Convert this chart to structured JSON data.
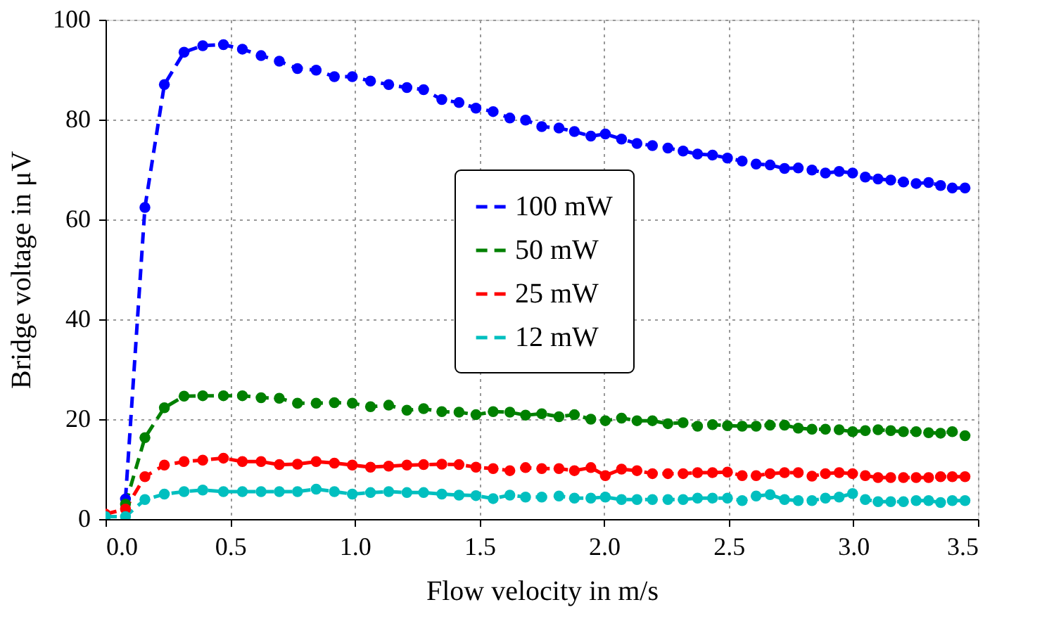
{
  "chart_data": {
    "type": "line",
    "xlabel": "Flow velocity in m/s",
    "ylabel": "Bridge voltage in μV",
    "x": [
      0.0,
      0.08,
      0.158,
      0.236,
      0.315,
      0.39,
      0.473,
      0.549,
      0.624,
      0.697,
      0.77,
      0.845,
      0.918,
      0.99,
      1.063,
      1.136,
      1.209,
      1.276,
      1.349,
      1.418,
      1.486,
      1.555,
      1.622,
      1.685,
      1.75,
      1.819,
      1.881,
      1.947,
      2.005,
      2.07,
      2.132,
      2.194,
      2.256,
      2.317,
      2.375,
      2.435,
      2.495,
      2.554,
      2.61,
      2.666,
      2.724,
      2.779,
      2.834,
      2.888,
      2.943,
      2.997,
      3.048,
      3.099,
      3.15,
      3.201,
      3.252,
      3.302,
      3.35,
      3.397,
      3.448
    ],
    "series": [
      {
        "name": "100 mW",
        "color": "#0000ff",
        "values": [
          null,
          4.0,
          62.4,
          87.0,
          93.5,
          94.8,
          95.0,
          94.1,
          92.8,
          91.7,
          90.2,
          89.9,
          88.6,
          88.6,
          87.7,
          87.0,
          86.4,
          86.0,
          84.0,
          83.4,
          82.3,
          81.6,
          80.3,
          79.9,
          78.6,
          78.3,
          77.6,
          76.7,
          77.1,
          76.1,
          75.2,
          74.8,
          74.3,
          73.7,
          73.1,
          72.9,
          72.3,
          71.7,
          71.1,
          70.9,
          70.2,
          70.3,
          69.9,
          69.3,
          69.6,
          69.3,
          68.5,
          68.1,
          67.9,
          67.5,
          67.2,
          67.4,
          66.8,
          66.3,
          66.3
        ]
      },
      {
        "name": "50 mW",
        "color": "#008000",
        "values": [
          null,
          3.0,
          16.3,
          22.3,
          24.6,
          24.7,
          24.7,
          24.7,
          24.3,
          24.2,
          23.2,
          23.2,
          23.3,
          23.2,
          22.5,
          22.8,
          21.8,
          22.1,
          21.5,
          21.4,
          20.9,
          21.5,
          21.4,
          20.8,
          21.1,
          20.5,
          20.9,
          20.0,
          19.7,
          20.2,
          19.7,
          19.7,
          19.1,
          19.3,
          18.6,
          18.9,
          18.7,
          18.6,
          18.6,
          18.8,
          18.8,
          18.2,
          18.0,
          18.0,
          17.9,
          17.5,
          17.7,
          17.9,
          17.7,
          17.5,
          17.5,
          17.3,
          17.2,
          17.5,
          16.7
        ]
      },
      {
        "name": "25 mW",
        "color": "#ff0000",
        "values": [
          1.0,
          2.0,
          8.5,
          10.8,
          11.5,
          11.8,
          12.2,
          11.5,
          11.5,
          10.9,
          11.0,
          11.5,
          11.2,
          10.8,
          10.4,
          10.6,
          10.8,
          10.9,
          11.0,
          10.9,
          10.4,
          10.1,
          9.7,
          10.3,
          10.1,
          10.1,
          9.7,
          10.3,
          8.7,
          10.0,
          9.7,
          9.1,
          9.1,
          9.1,
          9.3,
          9.3,
          9.4,
          8.7,
          8.7,
          9.1,
          9.3,
          9.3,
          8.6,
          9.1,
          9.3,
          9.1,
          8.7,
          8.3,
          8.3,
          8.3,
          8.3,
          8.3,
          8.5,
          8.5,
          8.5
        ]
      },
      {
        "name": "12 mW",
        "color": "#00bfbf",
        "values": [
          0.5,
          0.5,
          3.9,
          5.0,
          5.5,
          5.8,
          5.5,
          5.5,
          5.5,
          5.5,
          5.5,
          6.0,
          5.5,
          5.0,
          5.3,
          5.5,
          5.3,
          5.3,
          5.0,
          4.8,
          4.7,
          4.1,
          4.8,
          4.4,
          4.4,
          4.6,
          4.2,
          4.2,
          4.4,
          3.9,
          3.9,
          3.9,
          3.9,
          3.9,
          4.2,
          4.2,
          4.2,
          3.7,
          4.6,
          4.9,
          3.9,
          3.7,
          3.7,
          4.2,
          4.4,
          5.1,
          3.9,
          3.5,
          3.5,
          3.5,
          3.7,
          3.7,
          3.3,
          3.7,
          3.7
        ]
      }
    ],
    "xlim": [
      0,
      3.5
    ],
    "xticks": [
      {
        "value": 0,
        "label": "0.0"
      },
      {
        "value": 0.5,
        "label": "0.5"
      },
      {
        "value": 1,
        "label": "1.0"
      },
      {
        "value": 1.5,
        "label": "1.5"
      },
      {
        "value": 2,
        "label": "2.0"
      },
      {
        "value": 2.5,
        "label": "2.5"
      },
      {
        "value": 3,
        "label": "3.0"
      },
      {
        "value": 3.5,
        "label": "3.5"
      }
    ],
    "ylim": [
      0,
      100
    ],
    "yticks": [
      0,
      20,
      40,
      60,
      80,
      100
    ],
    "grid": true,
    "legend": "center",
    "marker": "circle",
    "line_style": "dashed"
  }
}
